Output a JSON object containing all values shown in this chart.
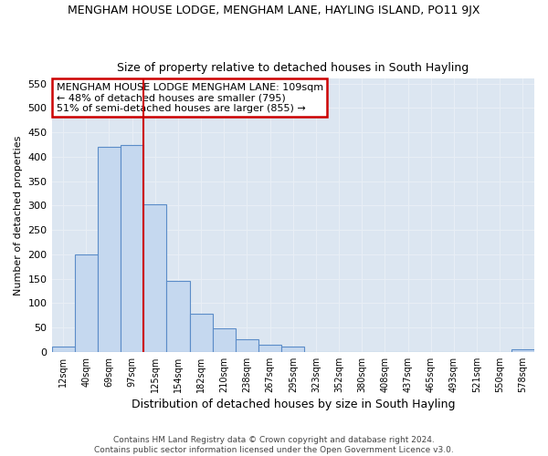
{
  "title1": "MENGHAM HOUSE LODGE, MENGHAM LANE, HAYLING ISLAND, PO11 9JX",
  "title2": "Size of property relative to detached houses in South Hayling",
  "xlabel": "Distribution of detached houses by size in South Hayling",
  "ylabel": "Number of detached properties",
  "footer1": "Contains HM Land Registry data © Crown copyright and database right 2024.",
  "footer2": "Contains public sector information licensed under the Open Government Licence v3.0.",
  "annotation_line1": "MENGHAM HOUSE LODGE MENGHAM LANE: 109sqm",
  "annotation_line2": "← 48% of detached houses are smaller (795)",
  "annotation_line3": "51% of semi-detached houses are larger (855) →",
  "bar_color": "#c5d8ef",
  "bar_edge_color": "#5b8cc8",
  "vline_color": "#cc0000",
  "background_color": "#dce6f1",
  "annotation_box_color": "#ffffff",
  "annotation_box_edge": "#cc0000",
  "categories": [
    "12sqm",
    "40sqm",
    "69sqm",
    "97sqm",
    "125sqm",
    "154sqm",
    "182sqm",
    "210sqm",
    "238sqm",
    "267sqm",
    "295sqm",
    "323sqm",
    "352sqm",
    "380sqm",
    "408sqm",
    "437sqm",
    "465sqm",
    "493sqm",
    "521sqm",
    "550sqm",
    "578sqm"
  ],
  "values": [
    10,
    200,
    420,
    425,
    302,
    145,
    78,
    48,
    25,
    15,
    10,
    0,
    0,
    0,
    0,
    0,
    0,
    0,
    0,
    0,
    5
  ],
  "ylim": [
    0,
    560
  ],
  "yticks": [
    0,
    50,
    100,
    150,
    200,
    250,
    300,
    350,
    400,
    450,
    500,
    550
  ],
  "grid_color": "#e8eef5",
  "vline_bar_index": 3,
  "vline_right_edge": true
}
